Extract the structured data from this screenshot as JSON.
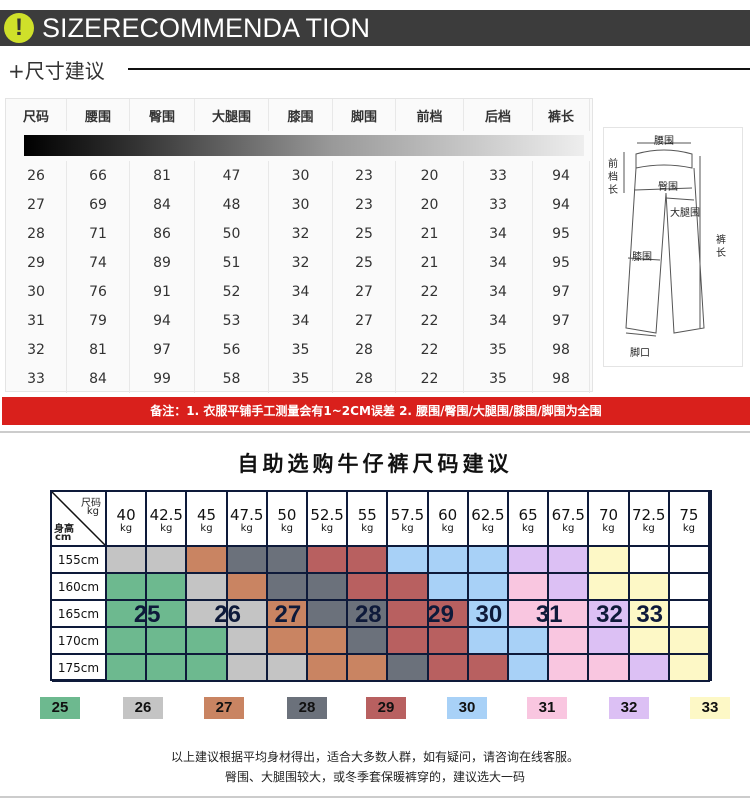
{
  "header": {
    "icon": "exclamation-icon",
    "title": "SIZERECOMMENDA TION",
    "subtitle": "+尺寸建议"
  },
  "size_table": {
    "columns": [
      "尺码",
      "腰围",
      "臀围",
      "大腿围",
      "膝围",
      "脚围",
      "前档",
      "后档",
      "裤长"
    ],
    "rows": [
      [
        "26",
        "66",
        "81",
        "47",
        "30",
        "23",
        "20",
        "33",
        "94"
      ],
      [
        "27",
        "69",
        "84",
        "48",
        "30",
        "23",
        "20",
        "33",
        "94"
      ],
      [
        "28",
        "71",
        "86",
        "50",
        "32",
        "25",
        "21",
        "34",
        "95"
      ],
      [
        "29",
        "74",
        "89",
        "51",
        "32",
        "25",
        "21",
        "34",
        "95"
      ],
      [
        "30",
        "76",
        "91",
        "52",
        "34",
        "27",
        "22",
        "34",
        "97"
      ],
      [
        "31",
        "79",
        "94",
        "53",
        "34",
        "27",
        "22",
        "34",
        "97"
      ],
      [
        "32",
        "81",
        "97",
        "56",
        "35",
        "28",
        "22",
        "35",
        "98"
      ],
      [
        "33",
        "84",
        "99",
        "58",
        "35",
        "28",
        "22",
        "35",
        "98"
      ]
    ]
  },
  "diagram": {
    "labels": {
      "waist": "腰围",
      "front_rise": "前档长",
      "hip": "臀围",
      "thigh": "大腿围",
      "length": "裤长",
      "knee": "膝围",
      "hem": "脚口"
    }
  },
  "banner": "备注：1. 衣服平铺手工测量会有1~2CM误差   2. 腰围/臀围/大腿围/膝围/脚围为全围",
  "recommend": {
    "title": "自助选购牛仔裤尺码建议",
    "corner": {
      "size": "尺码",
      "kg": "kg",
      "height": "身高",
      "cm": "cm"
    },
    "weights": [
      "40",
      "42.5",
      "45",
      "47.5",
      "50",
      "52.5",
      "55",
      "57.5",
      "60",
      "62.5",
      "65",
      "67.5",
      "70",
      "72.5",
      "75"
    ],
    "unit": "kg",
    "heights": [
      "155cm",
      "160cm",
      "165cm",
      "170cm",
      "175cm"
    ],
    "grid": [
      [
        "26",
        "26",
        "27",
        "28",
        "28",
        "29",
        "29",
        "30",
        "30",
        "30",
        "32",
        "32",
        "33",
        "",
        ""
      ],
      [
        "25",
        "25",
        "26",
        "27",
        "28",
        "28",
        "29",
        "29",
        "30",
        "30",
        "31",
        "32",
        "33",
        "33",
        ""
      ],
      [
        "25",
        "25",
        "26",
        "26",
        "27",
        "28",
        "28",
        "29",
        "29",
        "30",
        "31",
        "31",
        "32",
        "33",
        ""
      ],
      [
        "25",
        "25",
        "25",
        "26",
        "27",
        "27",
        "28",
        "29",
        "29",
        "30",
        "30",
        "31",
        "32",
        "33",
        "33"
      ],
      [
        "25",
        "25",
        "25",
        "26",
        "26",
        "27",
        "27",
        "28",
        "29",
        "29",
        "30",
        "31",
        "31",
        "32",
        "33"
      ]
    ],
    "row_labels": [
      "25",
      "26",
      "27",
      "28",
      "29",
      "30",
      "31",
      "32",
      "33"
    ],
    "colors": {
      "25": "#6db98f",
      "26": "#c4c4c4",
      "27": "#c98462",
      "28": "#6b717b",
      "29": "#b86060",
      "30": "#a8d1f7",
      "31": "#f9c6e0",
      "32": "#dcc0f4",
      "33": "#fdf8c6",
      "": "#ffffff"
    }
  },
  "legend": [
    "25",
    "26",
    "27",
    "28",
    "29",
    "30",
    "31",
    "32",
    "33"
  ],
  "notes": [
    "以上建议根据平均身材得出，适合大多数人群，如有疑问，请咨询在线客服。",
    "臀围、大腿围较大，或冬季套保暖裤穿的，建议选大一码"
  ]
}
